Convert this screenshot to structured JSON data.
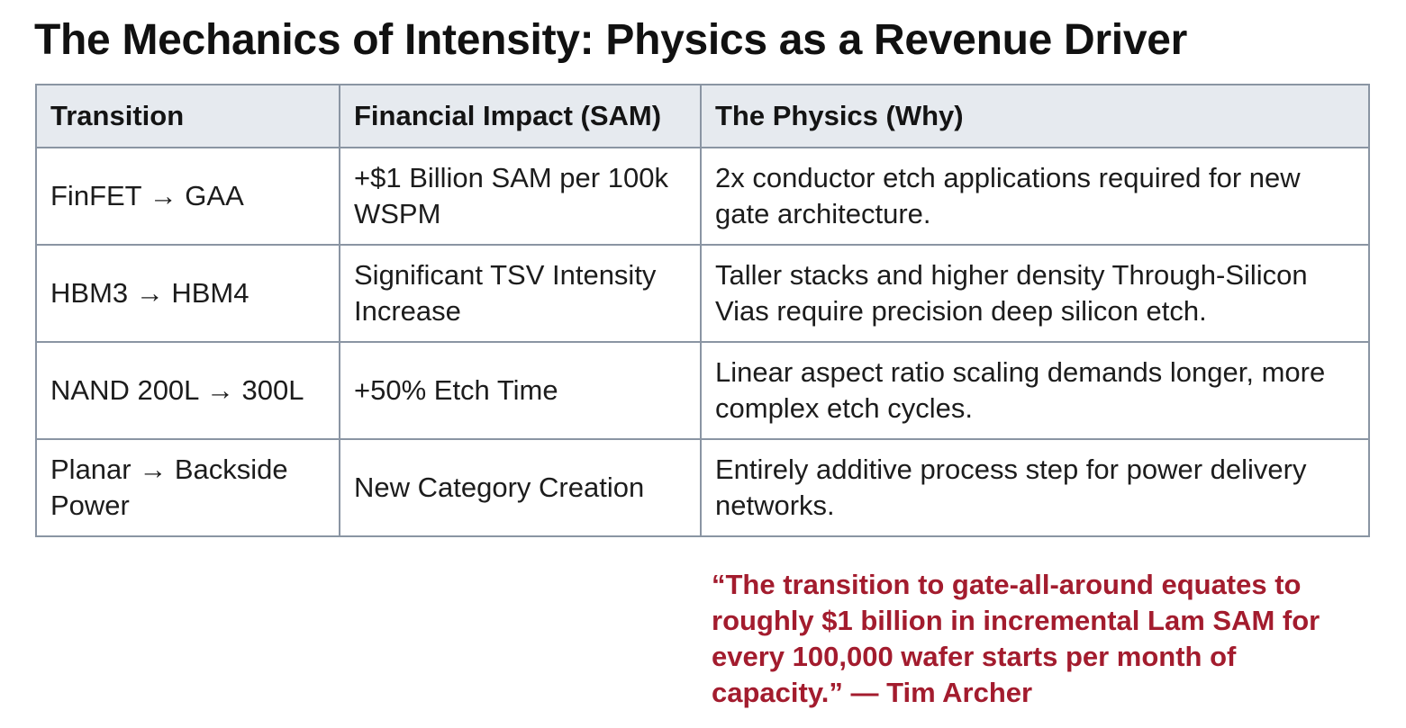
{
  "title": "The Mechanics of Intensity: Physics as a Revenue Driver",
  "table": {
    "headers": [
      "Transition",
      "Financial Impact (SAM)",
      "The Physics (Why)"
    ],
    "rows": [
      {
        "transition": "FinFET → GAA",
        "impact": "+$1 Billion SAM per 100k WSPM",
        "physics": "2x conductor etch applications required for new gate architecture."
      },
      {
        "transition": "HBM3 → HBM4",
        "impact": "Significant TSV Intensity Increase",
        "physics": "Taller stacks and higher density Through-Silicon Vias require precision deep silicon etch."
      },
      {
        "transition": "NAND 200L → 300L",
        "impact": "+50% Etch Time",
        "physics": "Linear aspect ratio scaling demands longer, more complex etch cycles."
      },
      {
        "transition": "Planar → Backside Power",
        "impact": "New Category Creation",
        "physics": "Entirely additive process step for power delivery networks."
      }
    ]
  },
  "quote": {
    "text": "“The transition to gate-all-around equates to roughly $1 billion in incremental Lam SAM for every 100,000 wafer starts per month of capacity.” — Tim Archer"
  },
  "colors": {
    "header_background": "#e6eaef",
    "border": "#8a95a3",
    "quote_text": "#a31c2e"
  }
}
